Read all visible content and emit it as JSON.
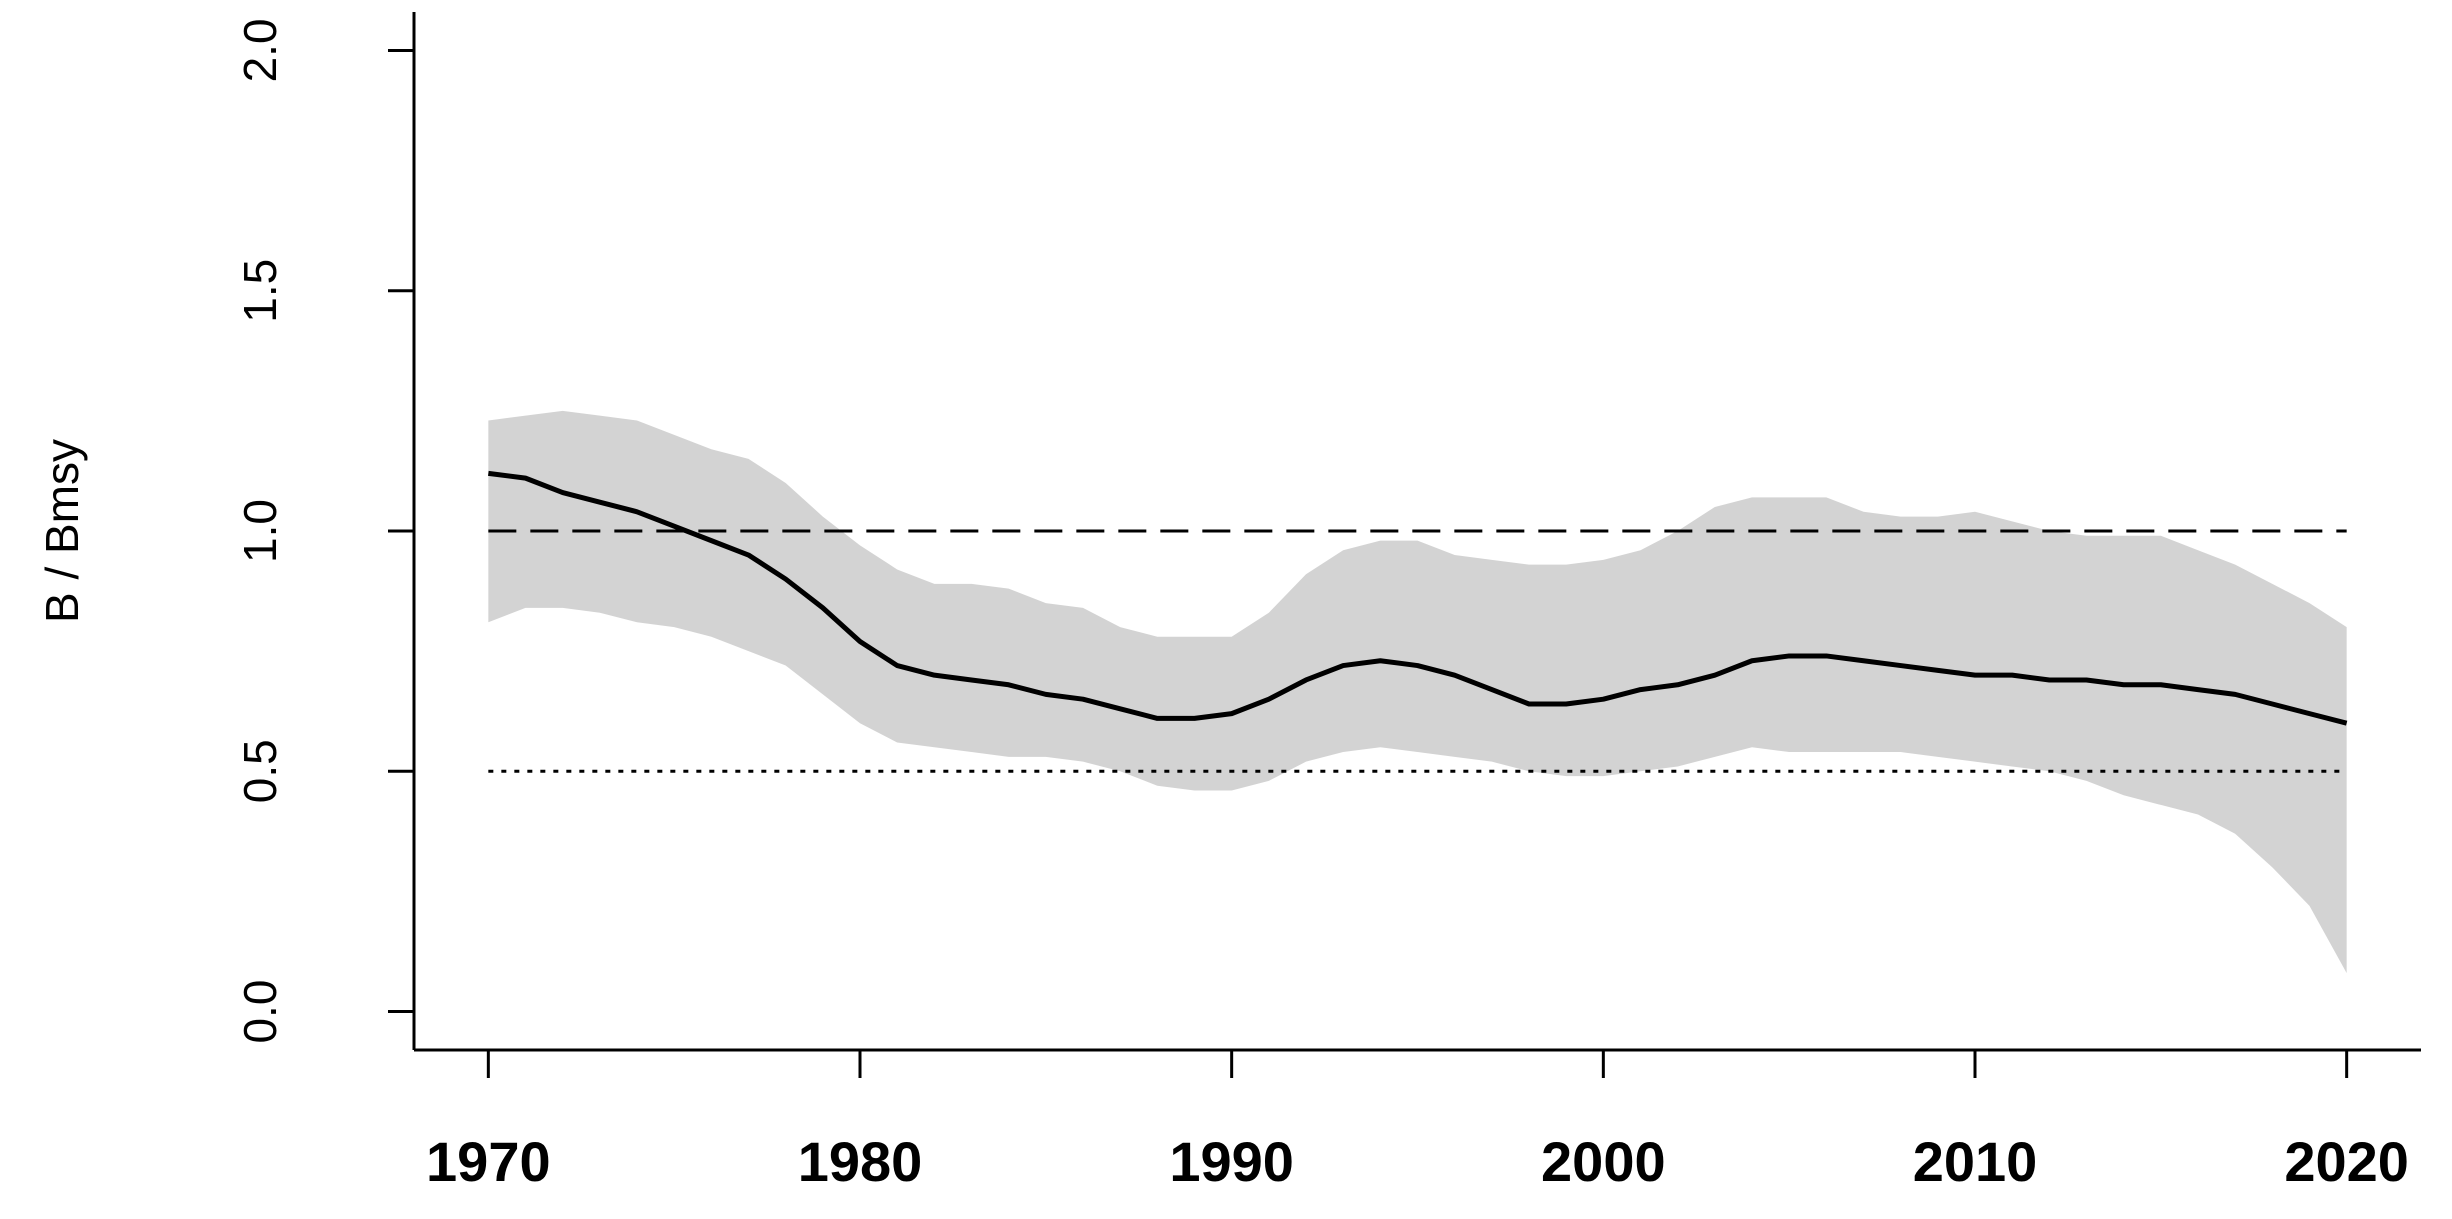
{
  "chart_data": {
    "type": "line",
    "ylabel": "B / Bmsy",
    "x": [
      1970,
      1971,
      1972,
      1973,
      1974,
      1975,
      1976,
      1977,
      1978,
      1979,
      1980,
      1981,
      1982,
      1983,
      1984,
      1985,
      1986,
      1987,
      1988,
      1989,
      1990,
      1991,
      1992,
      1993,
      1994,
      1995,
      1996,
      1997,
      1998,
      1999,
      2000,
      2001,
      2002,
      2003,
      2004,
      2005,
      2006,
      2007,
      2008,
      2009,
      2010,
      2011,
      2012,
      2013,
      2014,
      2015,
      2016,
      2017,
      2018,
      2019,
      2020
    ],
    "values": [
      1.12,
      1.11,
      1.08,
      1.06,
      1.04,
      1.01,
      0.98,
      0.95,
      0.9,
      0.84,
      0.77,
      0.72,
      0.7,
      0.69,
      0.68,
      0.66,
      0.65,
      0.63,
      0.61,
      0.61,
      0.62,
      0.65,
      0.69,
      0.72,
      0.73,
      0.72,
      0.7,
      0.67,
      0.64,
      0.64,
      0.65,
      0.67,
      0.68,
      0.7,
      0.73,
      0.74,
      0.74,
      0.73,
      0.72,
      0.71,
      0.7,
      0.7,
      0.69,
      0.69,
      0.68,
      0.68,
      0.67,
      0.66,
      0.64,
      0.62,
      0.6
    ],
    "color": "#000000",
    "band": {
      "color": "#d3d3d3",
      "upper": [
        1.23,
        1.24,
        1.25,
        1.24,
        1.23,
        1.2,
        1.17,
        1.15,
        1.1,
        1.03,
        0.97,
        0.92,
        0.89,
        0.89,
        0.88,
        0.85,
        0.84,
        0.8,
        0.78,
        0.78,
        0.78,
        0.83,
        0.91,
        0.96,
        0.98,
        0.98,
        0.95,
        0.94,
        0.93,
        0.93,
        0.94,
        0.96,
        1.0,
        1.05,
        1.07,
        1.07,
        1.07,
        1.04,
        1.03,
        1.03,
        1.04,
        1.02,
        1.0,
        0.99,
        0.99,
        0.99,
        0.96,
        0.93,
        0.89,
        0.85,
        0.8
      ],
      "lower": [
        0.81,
        0.84,
        0.84,
        0.83,
        0.81,
        0.8,
        0.78,
        0.75,
        0.72,
        0.66,
        0.6,
        0.56,
        0.55,
        0.54,
        0.53,
        0.53,
        0.52,
        0.5,
        0.47,
        0.46,
        0.46,
        0.48,
        0.52,
        0.54,
        0.55,
        0.54,
        0.53,
        0.52,
        0.5,
        0.49,
        0.49,
        0.5,
        0.51,
        0.53,
        0.55,
        0.54,
        0.54,
        0.54,
        0.54,
        0.53,
        0.52,
        0.51,
        0.5,
        0.48,
        0.45,
        0.43,
        0.41,
        0.37,
        0.3,
        0.22,
        0.08
      ]
    },
    "reference_lines": [
      {
        "value": 1,
        "style": "dashed"
      },
      {
        "value": 0.5,
        "style": "dotted"
      }
    ],
    "xlim": [
      1968,
      2022
    ],
    "xticks": [
      1970,
      1980,
      1990,
      2000,
      2010,
      2020
    ],
    "ylim": [
      -0.08,
      2.08
    ],
    "yticks": [
      {
        "value": 0,
        "label": "0.0"
      },
      0.5,
      {
        "value": 1,
        "label": "1.0"
      },
      1.5,
      {
        "value": 2,
        "label": "2.0"
      }
    ]
  }
}
